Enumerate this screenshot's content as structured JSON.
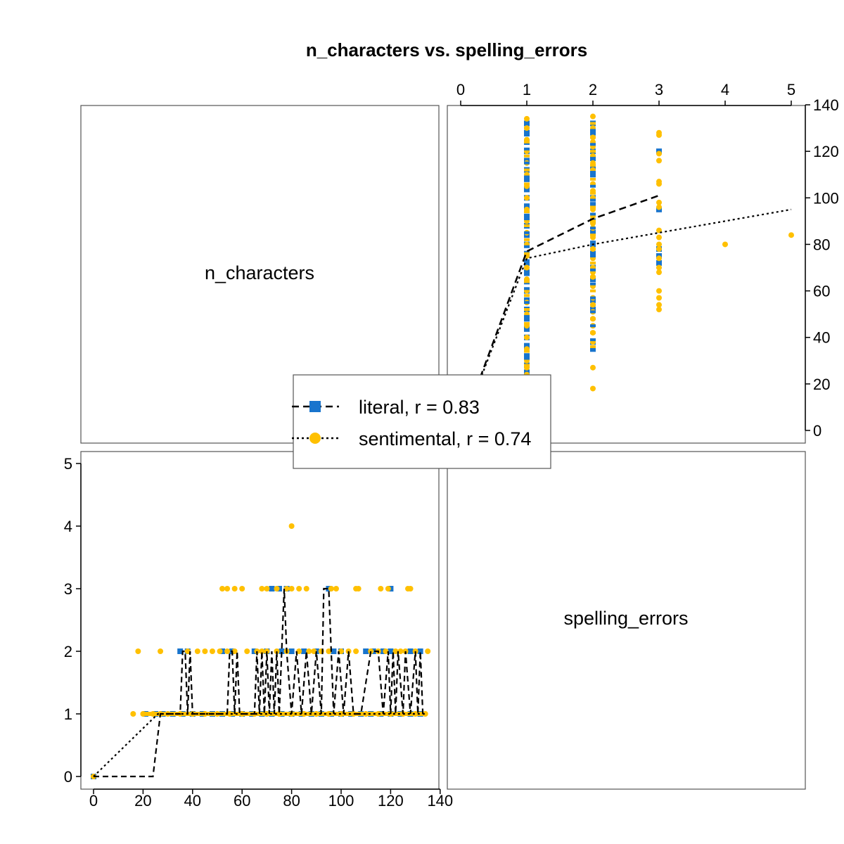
{
  "chart_data": {
    "type": "scatter",
    "title": "n_characters vs. spelling_errors",
    "variables": [
      "n_characters",
      "spelling_errors"
    ],
    "axes": {
      "n_characters": {
        "range": [
          0,
          140
        ],
        "ticks": [
          "0",
          "20",
          "40",
          "60",
          "80",
          "100",
          "120",
          "140"
        ]
      },
      "spelling_errors": {
        "range": [
          0,
          5
        ],
        "ticks": [
          "0",
          "1",
          "2",
          "3",
          "4",
          "5"
        ]
      }
    },
    "colors": {
      "literal": "#1874CD",
      "sentimental": "#FFC000"
    },
    "legend": {
      "placement": "center",
      "entries": [
        {
          "series": "literal",
          "label": "literal, r = 0.83",
          "line": "dashed",
          "marker": "square"
        },
        {
          "series": "sentimental",
          "label": "sentimental, r = 0.74",
          "line": "dotted",
          "marker": "circle"
        }
      ]
    },
    "series": [
      {
        "name": "literal",
        "points": [
          [
            0,
            0
          ],
          [
            21,
            1
          ],
          [
            25,
            1
          ],
          [
            28,
            1
          ],
          [
            32,
            1
          ],
          [
            36,
            1
          ],
          [
            40,
            1
          ],
          [
            44,
            1
          ],
          [
            48,
            1
          ],
          [
            52,
            1
          ],
          [
            56,
            1
          ],
          [
            60,
            1
          ],
          [
            64,
            1
          ],
          [
            68,
            1
          ],
          [
            72,
            1
          ],
          [
            76,
            1
          ],
          [
            80,
            1
          ],
          [
            84,
            1
          ],
          [
            88,
            1
          ],
          [
            92,
            1
          ],
          [
            96,
            1
          ],
          [
            100,
            1
          ],
          [
            104,
            1
          ],
          [
            108,
            1
          ],
          [
            112,
            1
          ],
          [
            116,
            1
          ],
          [
            120,
            1
          ],
          [
            124,
            1
          ],
          [
            128,
            1
          ],
          [
            132,
            1
          ],
          [
            35,
            2
          ],
          [
            38,
            2
          ],
          [
            52,
            2
          ],
          [
            56,
            2
          ],
          [
            65,
            2
          ],
          [
            70,
            2
          ],
          [
            76,
            2
          ],
          [
            80,
            2
          ],
          [
            85,
            2
          ],
          [
            90,
            2
          ],
          [
            97,
            2
          ],
          [
            100,
            2
          ],
          [
            110,
            2
          ],
          [
            113,
            2
          ],
          [
            117,
            2
          ],
          [
            120,
            2
          ],
          [
            128,
            2
          ],
          [
            132,
            2
          ],
          [
            72,
            3
          ],
          [
            75,
            3
          ],
          [
            78,
            3
          ],
          [
            95,
            3
          ],
          [
            120,
            3
          ]
        ],
        "means": [
          [
            0,
            0
          ],
          [
            1,
            77
          ],
          [
            2,
            91
          ],
          [
            3,
            101
          ]
        ]
      },
      {
        "name": "sentimental",
        "points": [
          [
            0,
            0
          ],
          [
            16,
            1
          ],
          [
            20,
            1
          ],
          [
            24,
            1
          ],
          [
            27,
            1
          ],
          [
            30,
            1
          ],
          [
            35,
            1
          ],
          [
            40,
            1
          ],
          [
            45,
            1
          ],
          [
            50,
            1
          ],
          [
            55,
            1
          ],
          [
            60,
            1
          ],
          [
            65,
            1
          ],
          [
            70,
            1
          ],
          [
            75,
            1
          ],
          [
            80,
            1
          ],
          [
            85,
            1
          ],
          [
            90,
            1
          ],
          [
            95,
            1
          ],
          [
            100,
            1
          ],
          [
            105,
            1
          ],
          [
            110,
            1
          ],
          [
            115,
            1
          ],
          [
            120,
            1
          ],
          [
            125,
            1
          ],
          [
            130,
            1
          ],
          [
            134,
            1
          ],
          [
            18,
            2
          ],
          [
            27,
            2
          ],
          [
            38,
            2
          ],
          [
            42,
            2
          ],
          [
            45,
            2
          ],
          [
            48,
            2
          ],
          [
            51,
            2
          ],
          [
            54,
            2
          ],
          [
            57,
            2
          ],
          [
            62,
            2
          ],
          [
            66,
            2
          ],
          [
            68,
            2
          ],
          [
            70,
            2
          ],
          [
            74,
            2
          ],
          [
            78,
            2
          ],
          [
            83,
            2
          ],
          [
            87,
            2
          ],
          [
            89,
            2
          ],
          [
            92,
            2
          ],
          [
            95,
            2
          ],
          [
            100,
            2
          ],
          [
            103,
            2
          ],
          [
            106,
            2
          ],
          [
            112,
            2
          ],
          [
            115,
            2
          ],
          [
            118,
            2
          ],
          [
            122,
            2
          ],
          [
            124,
            2
          ],
          [
            126,
            2
          ],
          [
            130,
            2
          ],
          [
            135,
            2
          ],
          [
            52,
            3
          ],
          [
            54,
            3
          ],
          [
            57,
            3
          ],
          [
            60,
            3
          ],
          [
            68,
            3
          ],
          [
            70,
            3
          ],
          [
            74,
            3
          ],
          [
            78,
            3
          ],
          [
            80,
            3
          ],
          [
            83,
            3
          ],
          [
            86,
            3
          ],
          [
            96,
            3
          ],
          [
            98,
            3
          ],
          [
            106,
            3
          ],
          [
            107,
            3
          ],
          [
            116,
            3
          ],
          [
            119,
            3
          ],
          [
            127,
            3
          ],
          [
            128,
            3
          ],
          [
            80,
            4
          ],
          [
            84,
            5
          ]
        ],
        "means": [
          [
            0,
            0
          ],
          [
            1,
            74
          ],
          [
            2,
            80
          ],
          [
            3,
            85
          ],
          [
            5,
            95
          ]
        ]
      }
    ],
    "literal_jitter_path_n": [
      0,
      24,
      27,
      35,
      36,
      37,
      38,
      39,
      40,
      54,
      55,
      56,
      57,
      58,
      59,
      65,
      66,
      67,
      68,
      69,
      70,
      71,
      72,
      73,
      74,
      75,
      76,
      77,
      78,
      80,
      82,
      84,
      86,
      88,
      90,
      92,
      93,
      95,
      97,
      99,
      101,
      103,
      105,
      108,
      112,
      115,
      117,
      119,
      120,
      121,
      122,
      123,
      125,
      126,
      128,
      130,
      131,
      132,
      133
    ],
    "literal_jitter_path_e": [
      0,
      0,
      1,
      1,
      2,
      2,
      1,
      2,
      1,
      1,
      2,
      2,
      1,
      2,
      1,
      1,
      2,
      1,
      2,
      1,
      2,
      1,
      2,
      1,
      2,
      1,
      2,
      3,
      2,
      1,
      2,
      1,
      2,
      1,
      2,
      1,
      3,
      3,
      1,
      2,
      1,
      2,
      1,
      1,
      2,
      2,
      1,
      2,
      1,
      2,
      1,
      2,
      1,
      2,
      1,
      2,
      1,
      2,
      1
    ]
  }
}
